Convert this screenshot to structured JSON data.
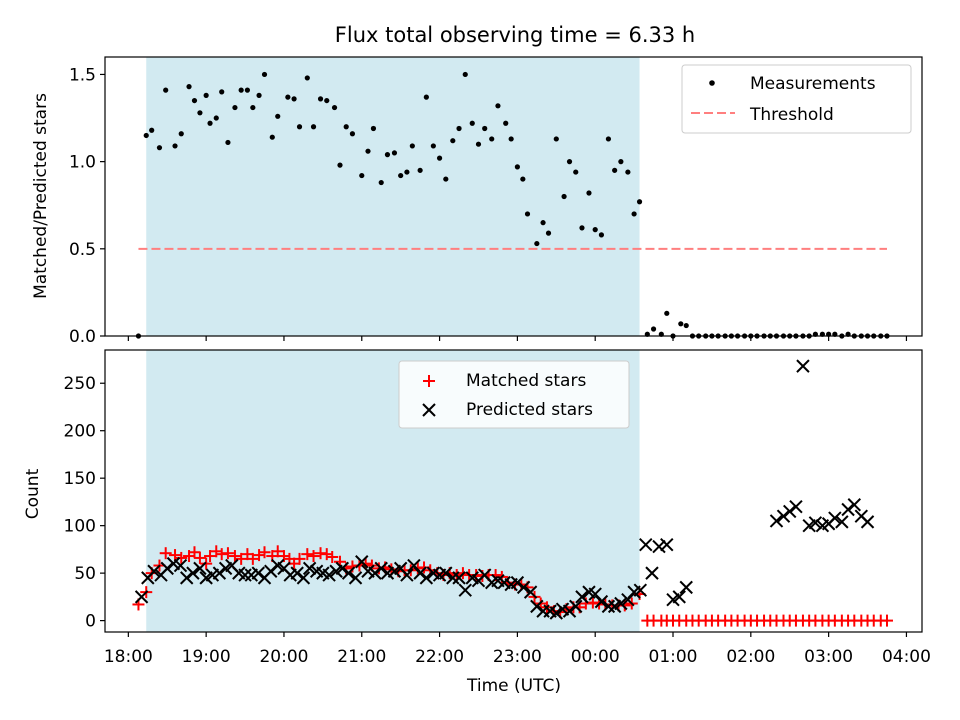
{
  "title": "Flux total observing time = 6.33 h",
  "chart_data": [
    {
      "type": "scatter",
      "panel": "top",
      "title": "Flux total observing time = 6.33 h",
      "ylabel": "Matched/Predicted stars",
      "xlabel": "",
      "ylim": [
        0,
        1.6
      ],
      "yticks": [
        "0.0",
        "0.5",
        "1.0",
        "1.5"
      ],
      "shaded_span": {
        "start_h": 18.23,
        "end_h": 24.57,
        "color": "#add8e6"
      },
      "legend_position": "top-right",
      "legend": [
        "Measurements",
        "Threshold"
      ],
      "series": [
        {
          "name": "Measurements",
          "color": "#000000",
          "x_h": [
            18.13,
            18.23,
            18.3,
            18.4,
            18.48,
            18.6,
            18.68,
            18.78,
            18.85,
            18.92,
            19.0,
            19.05,
            19.13,
            19.2,
            19.28,
            19.37,
            19.45,
            19.53,
            19.6,
            19.68,
            19.75,
            19.85,
            19.92,
            20.05,
            20.13,
            20.2,
            20.3,
            20.38,
            20.47,
            20.55,
            20.65,
            20.72,
            20.8,
            20.88,
            21.0,
            21.08,
            21.15,
            21.25,
            21.33,
            21.42,
            21.5,
            21.58,
            21.65,
            21.75,
            21.83,
            21.92,
            22.0,
            22.08,
            22.17,
            22.25,
            22.33,
            22.42,
            22.5,
            22.58,
            22.67,
            22.75,
            22.85,
            22.92,
            23.0,
            23.07,
            23.13,
            23.25,
            23.33,
            23.4,
            23.5,
            23.6,
            23.67,
            23.75,
            23.83,
            23.92,
            24.0,
            24.08,
            24.17,
            24.25,
            24.33,
            24.42,
            24.5,
            24.57,
            24.67,
            24.75,
            24.85,
            24.92,
            25.0,
            25.1,
            25.17,
            25.25,
            25.33,
            25.42,
            25.5,
            25.58,
            25.67,
            25.75,
            25.83,
            25.92,
            26.0,
            26.08,
            26.17,
            26.25,
            26.33,
            26.42,
            26.5,
            26.58,
            26.67,
            26.75,
            26.83,
            26.92,
            27.0,
            27.08,
            27.17,
            27.25,
            27.33,
            27.42,
            27.5,
            27.58,
            27.67,
            27.75
          ],
          "y": [
            0.0,
            1.15,
            1.18,
            1.08,
            1.41,
            1.09,
            1.16,
            1.43,
            1.35,
            1.28,
            1.38,
            1.22,
            1.25,
            1.4,
            1.11,
            1.31,
            1.41,
            1.41,
            1.31,
            1.38,
            1.5,
            1.14,
            1.26,
            1.37,
            1.36,
            1.2,
            1.48,
            1.2,
            1.36,
            1.35,
            1.31,
            0.98,
            1.2,
            1.16,
            0.92,
            1.06,
            1.19,
            0.88,
            1.04,
            1.05,
            0.92,
            0.94,
            1.09,
            0.95,
            1.37,
            1.09,
            1.02,
            0.9,
            1.12,
            1.19,
            1.5,
            1.22,
            1.1,
            1.19,
            1.13,
            1.32,
            1.22,
            1.13,
            0.97,
            0.9,
            0.7,
            0.53,
            0.65,
            0.59,
            1.13,
            0.8,
            1.0,
            0.94,
            0.62,
            0.82,
            0.61,
            0.58,
            1.13,
            0.95,
            1.0,
            0.94,
            0.7,
            0.77,
            0.01,
            0.04,
            0.01,
            0.13,
            0.0,
            0.07,
            0.06,
            0.0,
            0.0,
            0.0,
            0.0,
            0.0,
            0.0,
            0.0,
            0.0,
            0.0,
            0.0,
            0.0,
            0.0,
            0.0,
            0.0,
            0.0,
            0.0,
            0.0,
            0.0,
            0.0,
            0.01,
            0.01,
            0.01,
            0.01,
            0.0,
            0.01,
            0.0,
            0.0,
            0.0,
            0.0,
            0.0,
            0.0
          ]
        },
        {
          "name": "Threshold",
          "color": "#ff7f7f",
          "style": "dashed",
          "x_h": [
            18.13,
            27.75
          ],
          "y": [
            0.5,
            0.5
          ]
        }
      ]
    },
    {
      "type": "scatter",
      "panel": "bottom",
      "ylabel": "Count",
      "xlabel": "Time (UTC)",
      "ylim": [
        -12,
        285
      ],
      "yticks": [
        "0",
        "50",
        "100",
        "150",
        "200",
        "250"
      ],
      "xticks": [
        "18:00",
        "19:00",
        "20:00",
        "21:00",
        "22:00",
        "23:00",
        "00:00",
        "01:00",
        "02:00",
        "03:00",
        "04:00"
      ],
      "xlim_h": [
        17.7,
        28.2
      ],
      "shaded_span": {
        "start_h": 18.23,
        "end_h": 24.57,
        "color": "#add8e6"
      },
      "legend_position": "top-center",
      "legend": [
        "Matched stars",
        "Predicted stars"
      ],
      "series": [
        {
          "name": "Matched stars",
          "marker": "plus",
          "color": "#ff0000",
          "x_h": [
            18.13,
            18.23,
            18.3,
            18.4,
            18.48,
            18.6,
            18.68,
            18.78,
            18.85,
            18.92,
            19.0,
            19.05,
            19.13,
            19.2,
            19.28,
            19.37,
            19.45,
            19.53,
            19.6,
            19.68,
            19.75,
            19.85,
            19.92,
            20.0,
            20.07,
            20.13,
            20.2,
            20.3,
            20.38,
            20.47,
            20.55,
            20.62,
            20.72,
            20.8,
            20.88,
            20.97,
            21.05,
            21.13,
            21.22,
            21.3,
            21.38,
            21.47,
            21.55,
            21.63,
            21.72,
            21.8,
            21.88,
            21.97,
            22.05,
            22.13,
            22.22,
            22.3,
            22.38,
            22.47,
            22.55,
            22.63,
            22.72,
            22.8,
            22.88,
            22.97,
            23.05,
            23.13,
            23.22,
            23.3,
            23.38,
            23.47,
            23.55,
            23.63,
            23.72,
            23.8,
            23.88,
            23.97,
            24.05,
            24.13,
            24.22,
            24.3,
            24.38,
            24.47,
            24.57,
            24.67,
            24.75,
            24.85,
            24.92,
            25.0,
            25.08,
            25.17,
            25.25,
            25.33,
            25.42,
            25.5,
            25.58,
            25.67,
            25.75,
            25.83,
            25.92,
            26.0,
            26.08,
            26.17,
            26.25,
            26.33,
            26.42,
            26.5,
            26.58,
            26.67,
            26.75,
            26.83,
            26.92,
            27.0,
            27.08,
            27.17,
            27.25,
            27.33,
            27.42,
            27.5,
            27.58,
            27.67,
            27.75
          ],
          "y": [
            17,
            30,
            50,
            58,
            71,
            69,
            66,
            68,
            72,
            66,
            60,
            68,
            73,
            70,
            71,
            68,
            65,
            70,
            65,
            69,
            72,
            68,
            73,
            68,
            65,
            60,
            65,
            70,
            68,
            71,
            70,
            67,
            62,
            55,
            57,
            58,
            60,
            58,
            55,
            56,
            54,
            52,
            53,
            53,
            55,
            56,
            53,
            50,
            48,
            50,
            48,
            50,
            48,
            48,
            47,
            48,
            48,
            46,
            40,
            38,
            38,
            35,
            25,
            18,
            14,
            10,
            9,
            12,
            14,
            14,
            18,
            19,
            18,
            17,
            16,
            16,
            16,
            18,
            28,
            0,
            0,
            0,
            0,
            0,
            0,
            0,
            0,
            0,
            0,
            0,
            0,
            0,
            0,
            0,
            0,
            0,
            0,
            0,
            0,
            0,
            0,
            0,
            0,
            0,
            0,
            0,
            0,
            0,
            0,
            0,
            0,
            0,
            0,
            0,
            0,
            0,
            0
          ]
        },
        {
          "name": "Predicted stars",
          "marker": "x",
          "color": "#000000",
          "x_h": [
            18.17,
            18.25,
            18.33,
            18.42,
            18.5,
            18.58,
            18.67,
            18.75,
            18.83,
            18.92,
            19.0,
            19.08,
            19.17,
            19.25,
            19.33,
            19.42,
            19.5,
            19.58,
            19.67,
            19.75,
            19.83,
            19.92,
            20.0,
            20.08,
            20.17,
            20.25,
            20.33,
            20.42,
            20.5,
            20.58,
            20.67,
            20.75,
            20.83,
            20.92,
            21.0,
            21.08,
            21.17,
            21.25,
            21.33,
            21.42,
            21.5,
            21.58,
            21.67,
            21.75,
            21.83,
            21.92,
            22.0,
            22.08,
            22.17,
            22.25,
            22.33,
            22.42,
            22.5,
            22.58,
            22.67,
            22.75,
            22.83,
            22.92,
            23.0,
            23.08,
            23.17,
            23.25,
            23.33,
            23.42,
            23.5,
            23.58,
            23.67,
            23.75,
            23.83,
            23.92,
            24.0,
            24.08,
            24.17,
            24.25,
            24.33,
            24.42,
            24.5,
            24.58,
            24.65,
            24.73,
            24.82,
            24.92,
            25.0,
            25.08,
            25.17,
            26.33,
            26.42,
            26.5,
            26.58,
            26.67,
            26.75,
            26.83,
            26.92,
            27.0,
            27.08,
            27.17,
            27.25,
            27.33,
            27.42,
            27.5
          ],
          "y": [
            25,
            45,
            52,
            48,
            55,
            60,
            58,
            45,
            50,
            55,
            45,
            48,
            50,
            55,
            58,
            50,
            48,
            48,
            50,
            45,
            52,
            58,
            55,
            48,
            50,
            45,
            55,
            52,
            50,
            48,
            52,
            55,
            50,
            45,
            62,
            52,
            50,
            55,
            50,
            52,
            55,
            48,
            58,
            50,
            45,
            50,
            48,
            50,
            45,
            45,
            32,
            45,
            42,
            48,
            40,
            42,
            40,
            38,
            40,
            35,
            30,
            15,
            10,
            10,
            8,
            12,
            10,
            15,
            25,
            30,
            28,
            20,
            15,
            15,
            18,
            22,
            30,
            32,
            80,
            50,
            78,
            80,
            22,
            25,
            35,
            105,
            110,
            115,
            120,
            268,
            100,
            103,
            100,
            102,
            108,
            104,
            117,
            122,
            110,
            104
          ]
        }
      ]
    }
  ]
}
